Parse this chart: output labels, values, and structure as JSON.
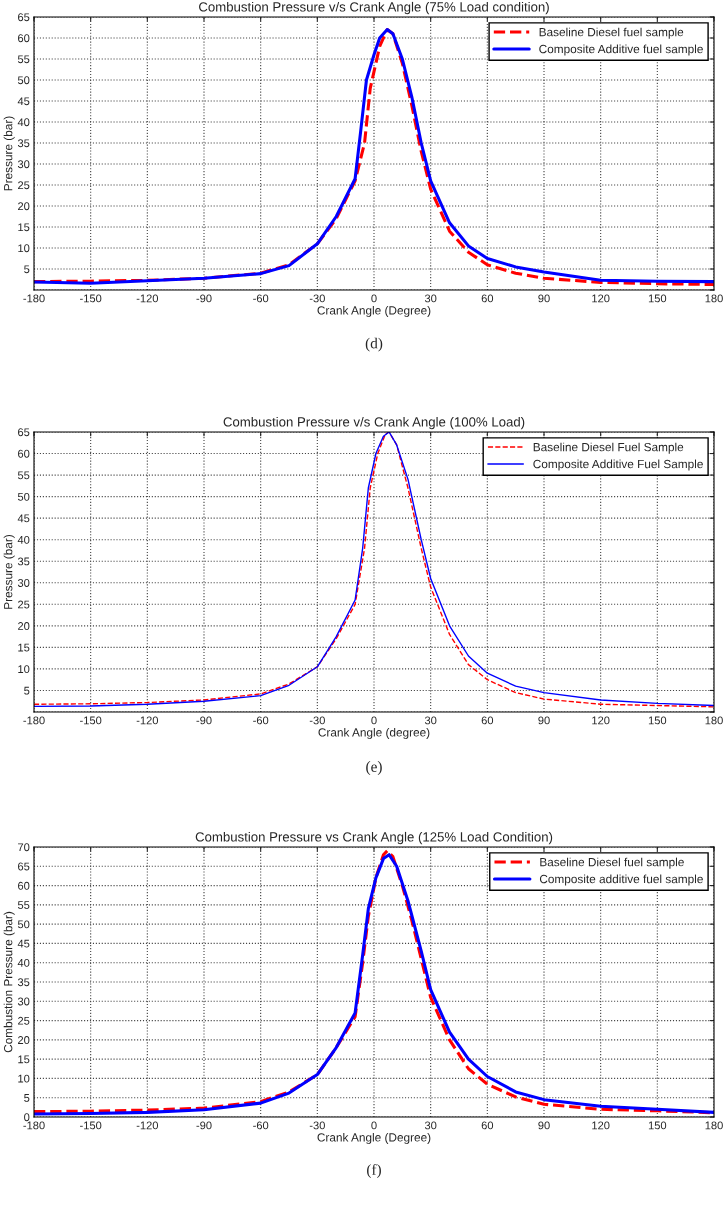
{
  "chart_data": [
    {
      "type": "line",
      "title": "Combustion Pressure v/s Crank Angle (75% Load condition)",
      "xlabel": "Crank Angle (Degree)",
      "ylabel": "Pressure (bar)",
      "annotations": [
        "(d)"
      ],
      "xlim": [
        -180,
        180
      ],
      "xticks": [
        -180,
        -150,
        -120,
        -90,
        -60,
        -30,
        0,
        30,
        60,
        90,
        120,
        150,
        180
      ],
      "ylim": [
        0,
        65
      ],
      "yticks": [
        {
          "value": 0,
          "label": null
        },
        5,
        10,
        15,
        20,
        25,
        30,
        35,
        40,
        45,
        50,
        55,
        60,
        65
      ],
      "grid": true,
      "legend": "top right",
      "series": [
        {
          "name": "Baseline Diesel fuel sample",
          "color": "#ff0000",
          "line_style": "dashed",
          "x": [
            -180,
            -150,
            -120,
            -90,
            -60,
            -45,
            -30,
            -20,
            -10,
            -5,
            -2,
            0,
            3,
            7,
            10,
            15,
            20,
            25,
            30,
            40,
            50,
            60,
            75,
            90,
            120,
            150,
            180
          ],
          "values": [
            2,
            2.1,
            2.3,
            2.8,
            4,
            6,
            11,
            17,
            26,
            35,
            48,
            52,
            58,
            62,
            61,
            54,
            44,
            33,
            24,
            14,
            9,
            6,
            4,
            2.8,
            1.8,
            1.5,
            1.3
          ]
        },
        {
          "name": "Composite Additive fuel sample",
          "color": "#0000ff",
          "line_style": "solid",
          "x": [
            -180,
            -150,
            -120,
            -90,
            -60,
            -45,
            -30,
            -20,
            -10,
            -7,
            -4,
            0,
            3,
            7,
            10,
            15,
            20,
            25,
            30,
            40,
            50,
            60,
            75,
            90,
            120,
            150,
            180
          ],
          "values": [
            1.9,
            1.6,
            2.2,
            2.8,
            3.9,
            5.8,
            11,
            17.5,
            26.5,
            38,
            50,
            56,
            60,
            62,
            61,
            55,
            46,
            35,
            26,
            16,
            10.5,
            7.5,
            5.5,
            4.3,
            2.3,
            2.1,
            2
          ]
        }
      ]
    },
    {
      "type": "line",
      "title": "Combustion Pressure v/s Crank Angle (100% Load)",
      "xlabel": "Crank Angle (degree)",
      "ylabel": "Pressure (bar)",
      "annotations": [
        "(e)"
      ],
      "xlim": [
        -180,
        180
      ],
      "xticks": [
        -180,
        -150,
        -120,
        -90,
        -60,
        -30,
        0,
        30,
        60,
        90,
        120,
        150,
        180
      ],
      "ylim": [
        0,
        65
      ],
      "yticks": [
        {
          "value": 0,
          "label": null
        },
        5,
        10,
        15,
        20,
        25,
        30,
        35,
        40,
        45,
        50,
        55,
        60,
        65
      ],
      "grid": true,
      "legend": "top right",
      "series": [
        {
          "name": "Baseline Diesel Fuel Sample",
          "color": "#ff0000",
          "line_style": "dashed",
          "x": [
            -180,
            -150,
            -120,
            -90,
            -60,
            -45,
            -30,
            -20,
            -10,
            -5,
            -2,
            2,
            6,
            8,
            12,
            18,
            25,
            30,
            40,
            50,
            60,
            75,
            90,
            120,
            150,
            180
          ],
          "values": [
            1.8,
            1.9,
            2.2,
            2.8,
            4.2,
            6.5,
            10.5,
            17,
            25,
            38,
            52,
            60,
            64.5,
            65,
            62,
            52,
            38,
            29,
            18,
            11,
            7.5,
            4.5,
            3,
            1.8,
            1.5,
            1.2
          ]
        },
        {
          "name": "Composite Additive Fuel Sample",
          "color": "#0000ff",
          "line_style": "solid",
          "x": [
            -180,
            -150,
            -120,
            -90,
            -60,
            -45,
            -30,
            -20,
            -10,
            -6,
            -3,
            1,
            5,
            8,
            12,
            18,
            25,
            30,
            40,
            50,
            60,
            75,
            90,
            120,
            150,
            180
          ],
          "values": [
            1.3,
            1.4,
            1.8,
            2.5,
            3.8,
            6.2,
            10.5,
            17.5,
            26,
            38,
            52,
            60,
            64,
            65,
            62,
            54,
            40,
            31,
            20,
            13,
            9,
            6,
            4.5,
            2.8,
            2,
            1.5
          ]
        }
      ]
    },
    {
      "type": "line",
      "title": "Combustion Pressure vs Crank Angle (125% Load Condition)",
      "xlabel": "Crank Angle (Degree)",
      "ylabel": "Combustion Pressure (bar)",
      "annotations": [
        "(f)"
      ],
      "xlim": [
        -180,
        180
      ],
      "xticks": [
        -180,
        -150,
        -120,
        -90,
        -60,
        -30,
        0,
        30,
        60,
        90,
        120,
        150,
        180
      ],
      "ylim": [
        0,
        70
      ],
      "yticks": [
        0,
        5,
        10,
        15,
        20,
        25,
        30,
        35,
        40,
        45,
        50,
        55,
        60,
        65,
        70
      ],
      "grid": true,
      "legend": "top right",
      "series": [
        {
          "name": "Baseline Diesel fuel sample",
          "color": "#ff0000",
          "line_style": "dashed",
          "x": [
            -180,
            -150,
            -120,
            -90,
            -60,
            -45,
            -30,
            -20,
            -10,
            -6,
            -3,
            1,
            5,
            7,
            10,
            15,
            20,
            25,
            30,
            40,
            50,
            60,
            75,
            90,
            120,
            150,
            180
          ],
          "values": [
            1.4,
            1.5,
            1.8,
            2.3,
            4,
            6.5,
            11,
            18,
            26,
            40,
            52,
            62,
            68,
            69,
            67.5,
            60,
            51,
            41,
            31,
            20,
            12.5,
            8.5,
            5.2,
            3.3,
            2,
            1.6,
            1.1
          ]
        },
        {
          "name": "Composite additive fuel sample",
          "color": "#0000ff",
          "line_style": "solid",
          "x": [
            -180,
            -150,
            -120,
            -90,
            -60,
            -45,
            -30,
            -20,
            -10,
            -6,
            -3,
            1,
            5,
            8,
            12,
            18,
            25,
            30,
            40,
            50,
            60,
            75,
            90,
            120,
            150,
            180
          ],
          "values": [
            0.8,
            0.9,
            1.2,
            1.9,
            3.6,
            6.2,
            11,
            18,
            27,
            42,
            54,
            62,
            67,
            68,
            65,
            56,
            43,
            33,
            22,
            15,
            10.5,
            6.5,
            4.5,
            2.8,
            2,
            1.2
          ]
        }
      ]
    }
  ]
}
